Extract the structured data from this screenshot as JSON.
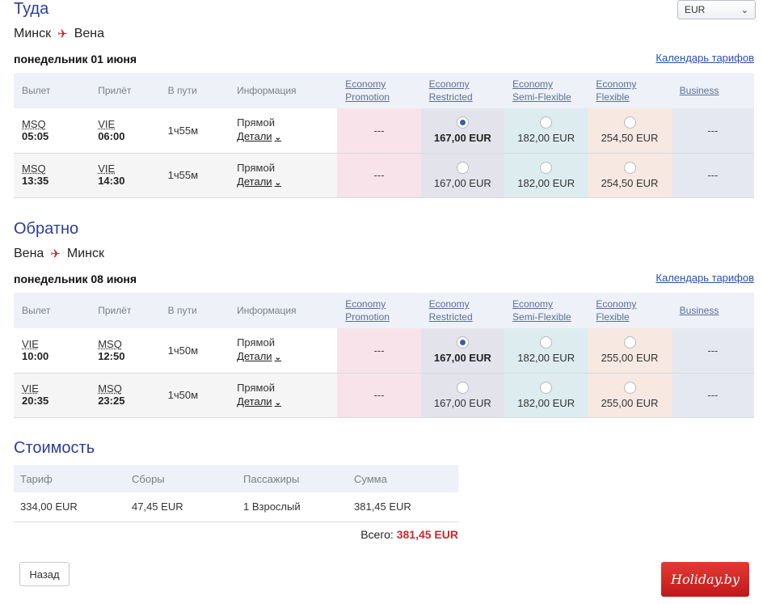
{
  "currency": {
    "selected": "EUR",
    "icon": "chevron-down-icon"
  },
  "outbound": {
    "title": "Туда",
    "from": "Минск",
    "to": "Вена",
    "date": "понедельник 01 июня",
    "calendar_link": "Календарь тарифов",
    "columns": {
      "dep": "Вылет",
      "arr": "Прилёт",
      "dur": "В пути",
      "info": "Информация"
    },
    "fares": [
      {
        "line1": "Economy",
        "line2": "Promotion"
      },
      {
        "line1": "Economy",
        "line2": "Restricted"
      },
      {
        "line1": "Economy",
        "line2": "Semi-Flexible"
      },
      {
        "line1": "Economy",
        "line2": "Flexible"
      },
      {
        "line1": "Business",
        "line2": ""
      }
    ],
    "rows": [
      {
        "dep_code": "MSQ",
        "dep_time": "05:05",
        "arr_code": "VIE",
        "arr_time": "06:00",
        "duration": "1ч55м",
        "type": "Прямой",
        "details": "Детали",
        "promo": "---",
        "restricted": "167,00 EUR",
        "semi": "182,00 EUR",
        "flex": "254,50 EUR",
        "business": "---",
        "selected": "restricted"
      },
      {
        "dep_code": "MSQ",
        "dep_time": "13:35",
        "arr_code": "VIE",
        "arr_time": "14:30",
        "duration": "1ч55м",
        "type": "Прямой",
        "details": "Детали",
        "promo": "---",
        "restricted": "167,00 EUR",
        "semi": "182,00 EUR",
        "flex": "254,50 EUR",
        "business": "---",
        "selected": ""
      }
    ]
  },
  "return": {
    "title": "Обратно",
    "from": "Вена",
    "to": "Минск",
    "date": "понедельник 08 июня",
    "calendar_link": "Календарь тарифов",
    "columns": {
      "dep": "Вылет",
      "arr": "Прилёт",
      "dur": "В пути",
      "info": "Информация"
    },
    "fares": [
      {
        "line1": "Economy",
        "line2": "Promotion"
      },
      {
        "line1": "Economy",
        "line2": "Restricted"
      },
      {
        "line1": "Economy",
        "line2": "Semi-Flexible"
      },
      {
        "line1": "Economy",
        "line2": "Flexible"
      },
      {
        "line1": "Business",
        "line2": ""
      }
    ],
    "rows": [
      {
        "dep_code": "VIE",
        "dep_time": "10:00",
        "arr_code": "MSQ",
        "arr_time": "12:50",
        "duration": "1ч50м",
        "type": "Прямой",
        "details": "Детали",
        "promo": "---",
        "restricted": "167,00 EUR",
        "semi": "182,00 EUR",
        "flex": "255,00 EUR",
        "business": "---",
        "selected": "restricted"
      },
      {
        "dep_code": "VIE",
        "dep_time": "20:35",
        "arr_code": "MSQ",
        "arr_time": "23:25",
        "duration": "1ч50м",
        "type": "Прямой",
        "details": "Детали",
        "promo": "---",
        "restricted": "167,00 EUR",
        "semi": "182,00 EUR",
        "flex": "255,00 EUR",
        "business": "---",
        "selected": ""
      }
    ]
  },
  "cost": {
    "title": "Стоимость",
    "headers": {
      "tariff": "Тариф",
      "fees": "Сборы",
      "passengers": "Пассажиры",
      "sum": "Сумма"
    },
    "row": {
      "tariff": "334,00 EUR",
      "fees": "47,45 EUR",
      "passengers": "1 Взрослый",
      "sum": "381,45 EUR"
    },
    "total_label": "Всего:",
    "total_value": "381,45 EUR",
    "total_color": "#d0262b"
  },
  "back_button": "Назад",
  "logo_text": "Holiday.by",
  "colors": {
    "title": "#2a3d9c",
    "accent_red": "#d9262b",
    "link": "#2a4fb0"
  }
}
